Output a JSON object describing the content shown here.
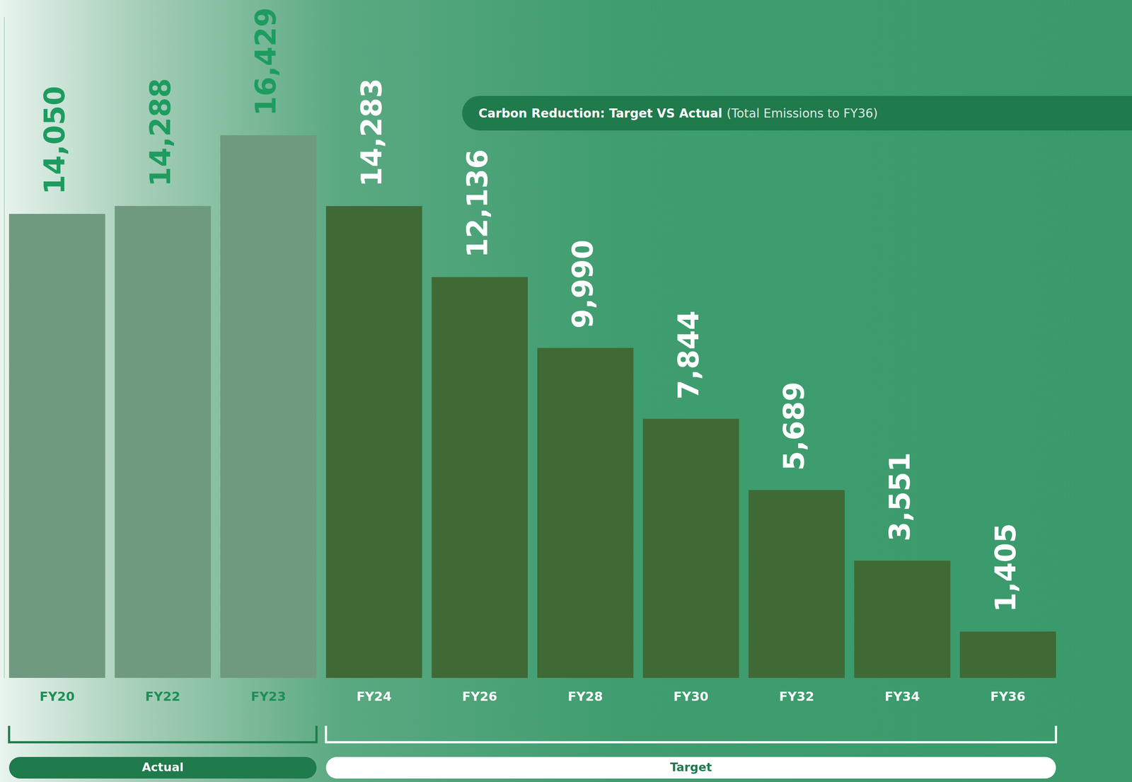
{
  "chart_data": {
    "type": "bar",
    "title": "Carbon Reduction: Target VS Actual",
    "subtitle": "(Total Emissions to FY36)",
    "categories": [
      "FY20",
      "FY22",
      "FY23",
      "FY24",
      "FY26",
      "FY28",
      "FY30",
      "FY32",
      "FY34",
      "FY36"
    ],
    "values": [
      14050,
      14288,
      16429,
      14283,
      12136,
      9990,
      7844,
      5689,
      3551,
      1405
    ],
    "value_labels": [
      "14,050",
      "14,288",
      "16,429",
      "14,283",
      "12,136",
      "9,990",
      "7,844",
      "5,689",
      "3,551",
      "1,405"
    ],
    "colors": [
      "#6f9a80",
      "#6f9a80",
      "#6f9a80",
      "#3f6a35",
      "#3f6a35",
      "#3f6a35",
      "#3f6a35",
      "#3f6a35",
      "#3f6a35",
      "#3f6a35"
    ],
    "ylim": [
      0,
      20000
    ],
    "grid": false,
    "data_labels": true,
    "tick_labels": "x",
    "annotations": [
      {
        "text": "Actual",
        "from": "FY20",
        "to": "FY23"
      },
      {
        "text": "Target",
        "from": "FY24",
        "to": "FY36"
      }
    ]
  }
}
